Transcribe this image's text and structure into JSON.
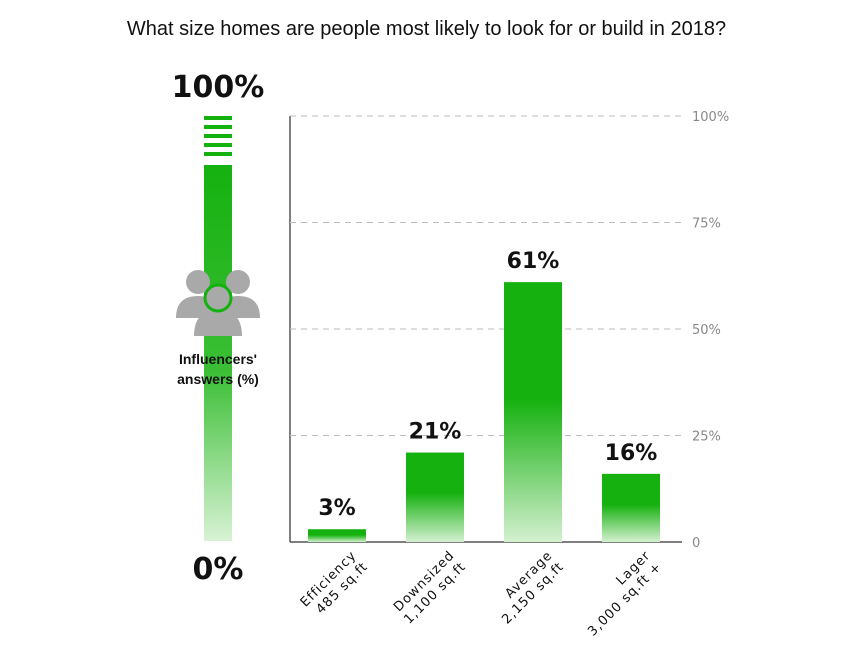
{
  "chart_data": {
    "type": "bar",
    "title": "What size homes are people most likely to look for or build in 2018?",
    "categories": [
      [
        "Efficiency",
        "485 sq.ft"
      ],
      [
        "Downsized",
        "1,100 sq.ft"
      ],
      [
        "Average",
        "2,150 sq.ft"
      ],
      [
        "Lager",
        "3,000 sq.ft +"
      ]
    ],
    "values": [
      3,
      21,
      61,
      16
    ],
    "value_labels": [
      "3%",
      "21%",
      "61%",
      "16%"
    ],
    "ylim": [
      0,
      100
    ],
    "yticks": [
      0,
      25,
      50,
      75,
      100
    ],
    "ytick_labels": [
      "0",
      "25%",
      "50%",
      "75%",
      "100%"
    ],
    "grid": true,
    "yaxis_side": "right",
    "bar_color": "#15b10f"
  },
  "gauge": {
    "top_label": "100%",
    "bottom_label": "0%",
    "caption_line1": "Influencers'",
    "caption_line2": "answers (%)",
    "icon": "people-group-icon",
    "color": "#15b10f",
    "icon_color": "#a9a9a9"
  }
}
